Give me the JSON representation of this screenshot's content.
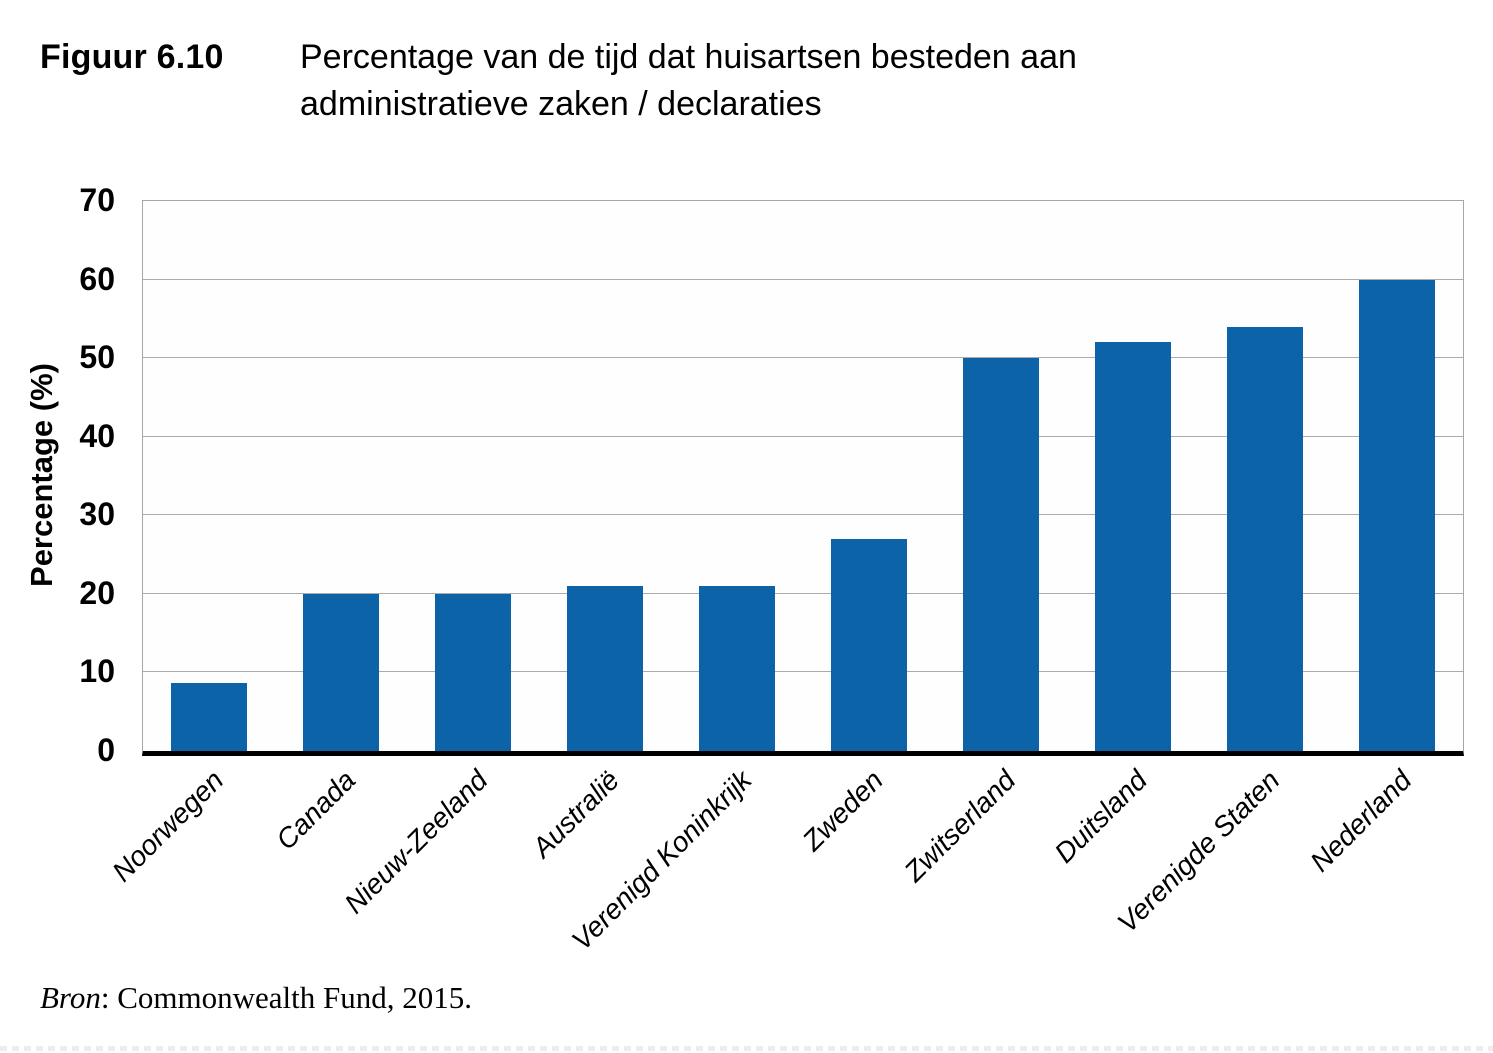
{
  "header": {
    "figure_label": "Figuur 6.10",
    "title": "Percentage van de tijd dat huisartsen besteden aan administratieve zaken / declaraties"
  },
  "chart_data": {
    "type": "bar",
    "title": "Percentage van de tijd dat huisartsen besteden aan administratieve zaken / declaraties",
    "categories": [
      "Noorwegen",
      "Canada",
      "Nieuw-Zeeland",
      "Australië",
      "Verenigd Koninkrijk",
      "Zweden",
      "Zwitserland",
      "Duitsland",
      "Verenigde Staten",
      "Nederland"
    ],
    "values": [
      8.7,
      20,
      20,
      21,
      21,
      27,
      50,
      52,
      54,
      60
    ],
    "xlabel": "",
    "ylabel": "Percentage (%)",
    "ylim": [
      0,
      70
    ],
    "yticks": [
      0,
      10,
      20,
      30,
      40,
      50,
      60,
      70
    ],
    "grid": "horizontal",
    "legend": "none",
    "bar_color": "#0D63A8"
  },
  "footer": {
    "source_label": "Bron",
    "source_rest": ": Commonwealth Fund, 2015."
  }
}
